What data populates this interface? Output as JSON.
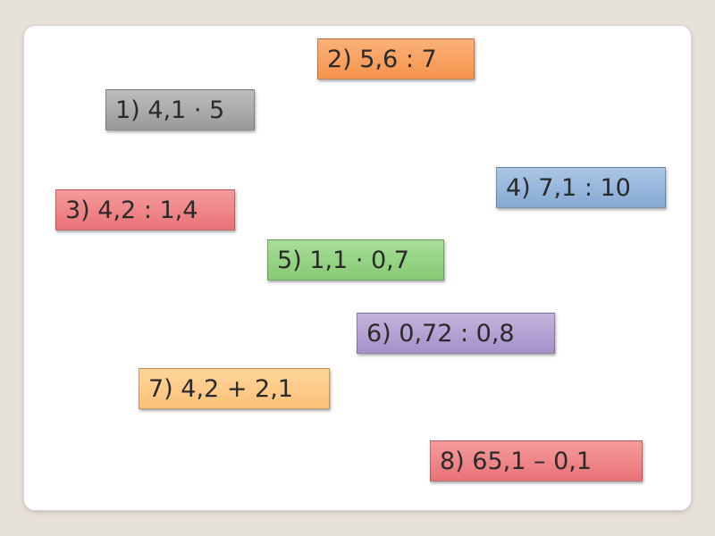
{
  "cards": [
    {
      "text": "1) 4,1 · 5",
      "color": "#a8a8a8"
    },
    {
      "text": "2) 5,6 : 7",
      "color": "#f7a064"
    },
    {
      "text": "3) 4,2 : 1,4",
      "color": "#ee8486"
    },
    {
      "text": "4) 7,1 : 10",
      "color": "#95b6dc"
    },
    {
      "text": "5) 1,1 · 0,7",
      "color": "#96d383"
    },
    {
      "text": "6) 0,72 : 0,8",
      "color": "#b3a0d2"
    },
    {
      "text": "7) 4,2 + 2,1",
      "color": "#fccb89"
    },
    {
      "text": "8) 65,1 – 0,1",
      "color": "#ee8486"
    }
  ]
}
